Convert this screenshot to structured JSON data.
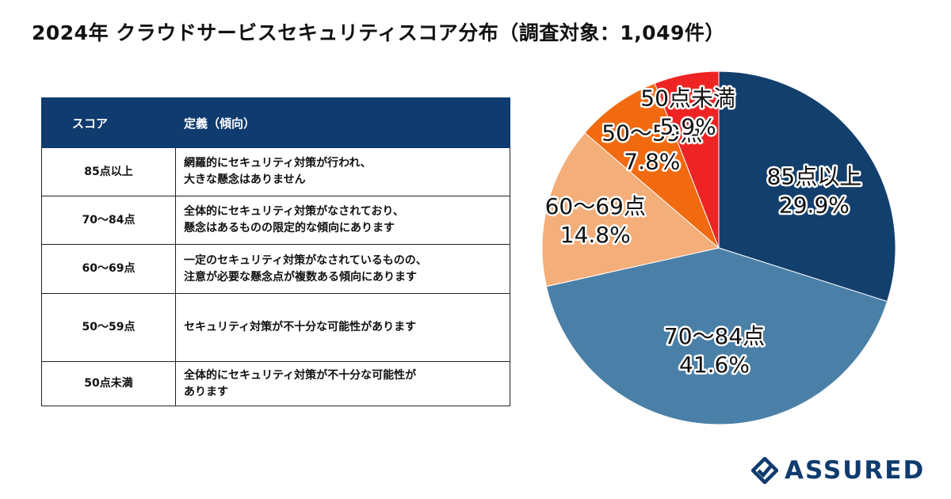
{
  "title": "2024年 クラウドサービスセキュリティスコア分布（調査対象：1,049件）",
  "table": {
    "headers": [
      "スコア",
      "定義（傾向）"
    ],
    "rows": [
      {
        "score": "85点以上",
        "lines": [
          "網羅的にセキュリティ対策が行われ、",
          "大きな懸念はありません"
        ]
      },
      {
        "score": "70〜84点",
        "lines": [
          "全体的にセキュリティ対策がなされており、",
          "懸念はあるものの限定的な傾向にあります"
        ]
      },
      {
        "score": "60〜69点",
        "lines": [
          "一定のセキュリティ対策がなされているものの、",
          "注意が必要な懸念点が複数ある傾向にあります"
        ]
      },
      {
        "score": "50〜59点",
        "lines": [
          "セキュリティ対策が不十分な可能性があります"
        ]
      },
      {
        "score": "50点未満",
        "lines": [
          "全体的にセキュリティ対策が不十分な可能性が",
          "あります"
        ]
      }
    ]
  },
  "chart_data": {
    "type": "pie",
    "title": "2024年 クラウドサービスセキュリティスコア分布（調査対象：1,049件）",
    "start": "12 o'clock, clockwise",
    "categories": [
      "85点以上",
      "70〜84点",
      "60〜69点",
      "50〜59点",
      "50点未満"
    ],
    "values": [
      29.9,
      41.6,
      14.8,
      7.8,
      5.9
    ],
    "value_labels": [
      "29.9%",
      "41.6%",
      "14.8%",
      "7.8%",
      "5.9%"
    ],
    "colors": [
      "#133f6d",
      "#4a80a8",
      "#f4ae7a",
      "#f26a10",
      "#ee2424"
    ]
  },
  "logo": {
    "text": "ASSURED",
    "color": "#0f3b6e"
  }
}
